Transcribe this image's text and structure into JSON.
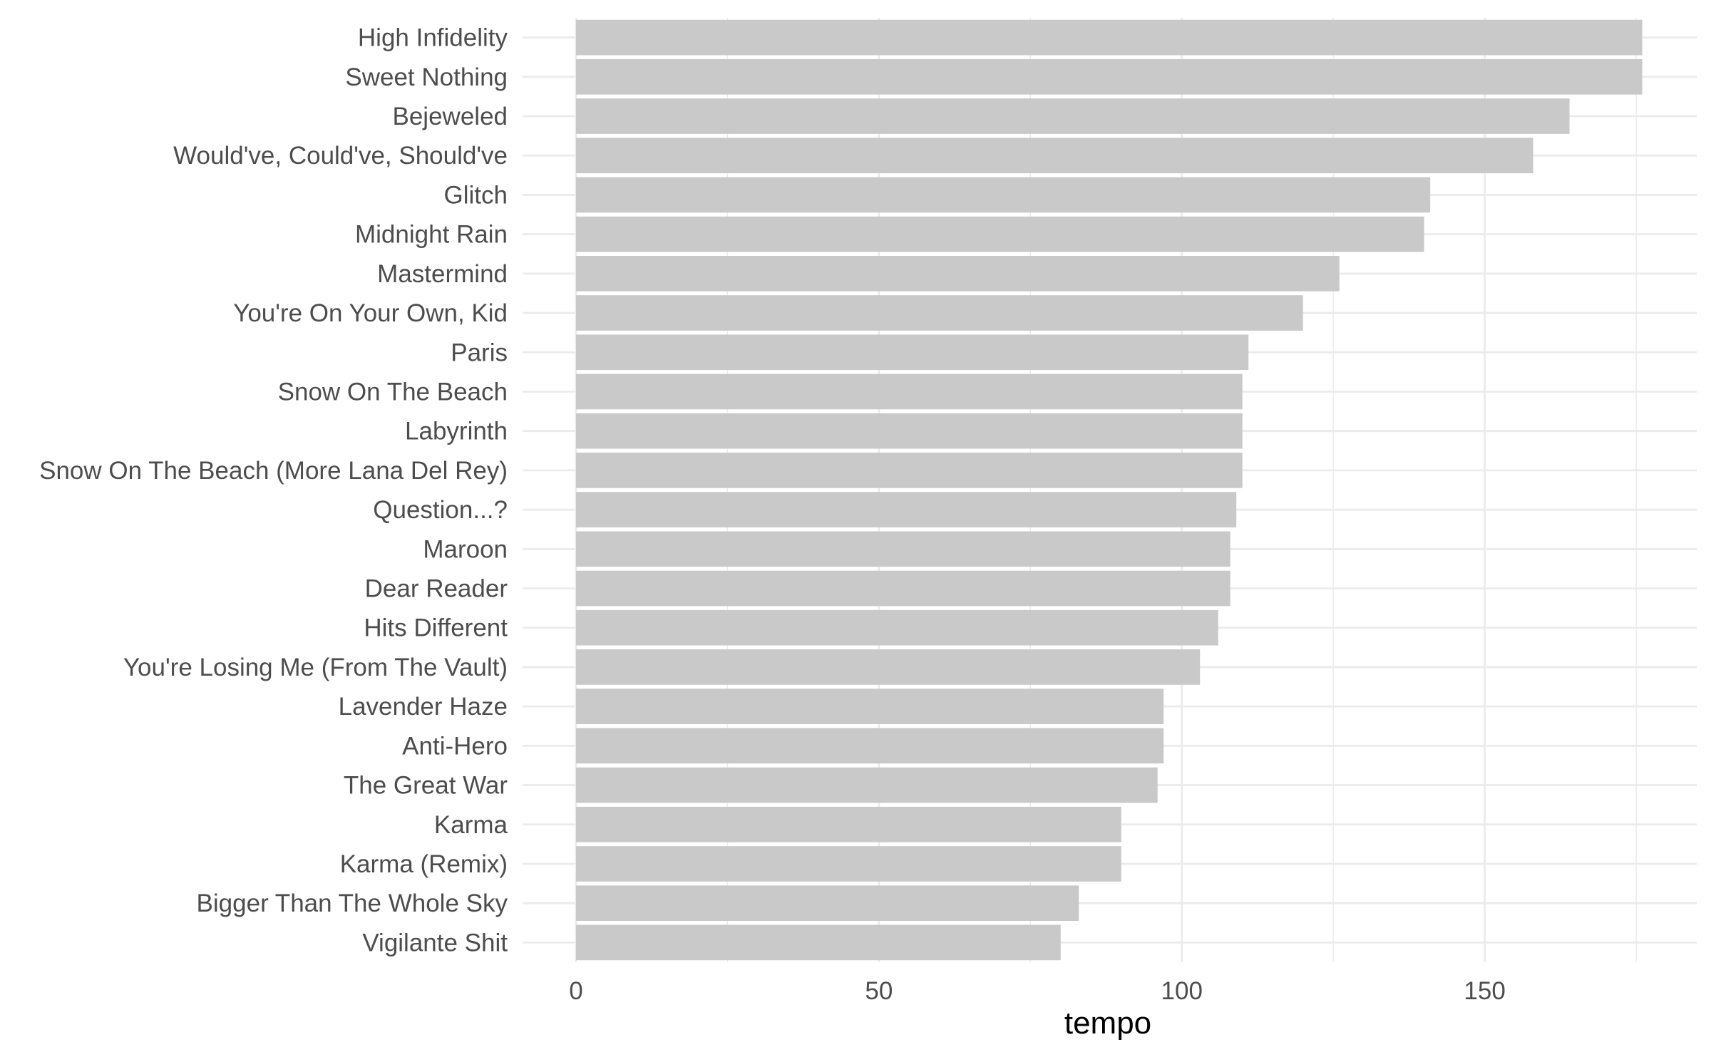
{
  "chart_data": {
    "type": "bar",
    "orientation": "horizontal",
    "title": "",
    "xlabel": "tempo",
    "ylabel": "",
    "xlim": [
      0,
      185
    ],
    "xticks": [
      0,
      50,
      100,
      150
    ],
    "grid": true,
    "bar_color": "#c9c9c9",
    "grid_color": "#ebebeb",
    "categories": [
      "High Infidelity",
      "Sweet Nothing",
      "Bejeweled",
      "Would've, Could've, Should've",
      "Glitch",
      "Midnight Rain",
      "Mastermind",
      "You're On Your Own, Kid",
      "Paris",
      "Snow On The Beach",
      "Labyrinth",
      "Snow On The Beach (More Lana Del Rey)",
      "Question...?",
      "Maroon",
      "Dear Reader",
      "Hits Different",
      "You're Losing Me (From The Vault)",
      "Lavender Haze",
      "Anti-Hero",
      "The Great War",
      "Karma",
      "Karma (Remix)",
      "Bigger Than The Whole Sky",
      "Vigilante Shit"
    ],
    "values": [
      176,
      176,
      164,
      158,
      141,
      140,
      126,
      120,
      111,
      110,
      110,
      110,
      109,
      108,
      108,
      106,
      103,
      97,
      97,
      96,
      90,
      90,
      83,
      80
    ]
  }
}
